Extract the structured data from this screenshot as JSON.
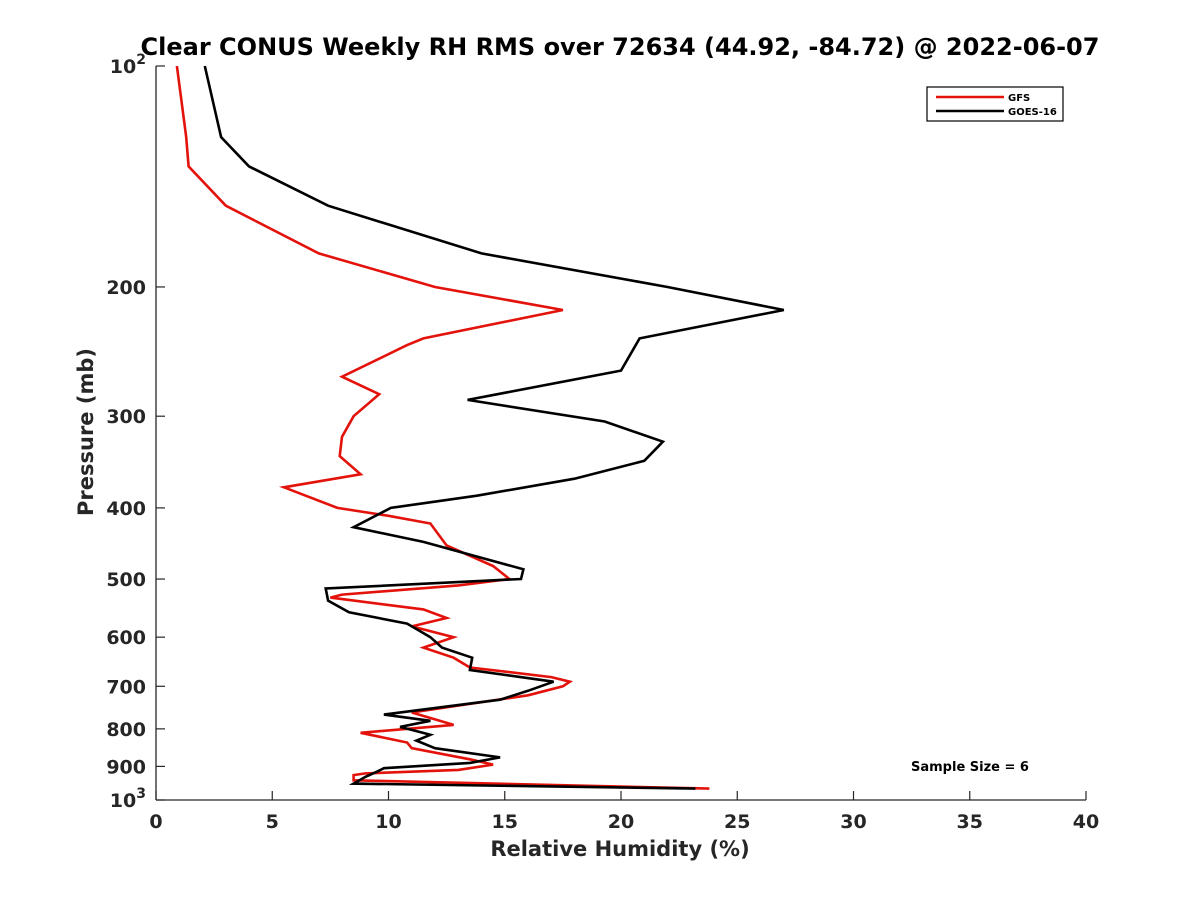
{
  "chart_data": {
    "type": "line",
    "title": "Clear CONUS Weekly RH RMS over 72634 (44.92, -84.72) @ 2022-06-07",
    "xlabel": "Relative Humidity (%)",
    "ylabel": "Pressure (mb)",
    "xlim": [
      0,
      40
    ],
    "ylim": [
      100,
      1000
    ],
    "yscale": "log",
    "y_reversed": true,
    "x_ticks": [
      0,
      5,
      10,
      15,
      20,
      25,
      30,
      35,
      40
    ],
    "x_tick_labels": [
      "0",
      "5",
      "10",
      "15",
      "20",
      "25",
      "30",
      "35",
      "40"
    ],
    "y_ticks": [
      100,
      200,
      300,
      400,
      500,
      600,
      700,
      800,
      900,
      1000
    ],
    "y_tick_labels": [
      {
        "base": "10",
        "exp": "2"
      },
      {
        "text": "200"
      },
      {
        "text": "300"
      },
      {
        "text": "400"
      },
      {
        "text": "500"
      },
      {
        "text": "600"
      },
      {
        "text": "700"
      },
      {
        "text": "800"
      },
      {
        "text": "900"
      },
      {
        "base": "10",
        "exp": "3"
      }
    ],
    "legend_position": "top-right",
    "annotation": "Sample Size = 6",
    "series": [
      {
        "name": "GFS",
        "color": "#e3120b",
        "points": [
          [
            0.9,
            100
          ],
          [
            1.3,
            125
          ],
          [
            1.4,
            137
          ],
          [
            3.0,
            155
          ],
          [
            7.0,
            180
          ],
          [
            12.0,
            200
          ],
          [
            17.5,
            215
          ],
          [
            11.5,
            235
          ],
          [
            10.8,
            240
          ],
          [
            8.0,
            265
          ],
          [
            9.6,
            280
          ],
          [
            8.5,
            300
          ],
          [
            8.0,
            320
          ],
          [
            7.9,
            340
          ],
          [
            8.8,
            360
          ],
          [
            5.5,
            375
          ],
          [
            7.8,
            400
          ],
          [
            10.0,
            410
          ],
          [
            11.8,
            420
          ],
          [
            12.5,
            450
          ],
          [
            14.5,
            480
          ],
          [
            15.2,
            500
          ],
          [
            13.0,
            510
          ],
          [
            8.0,
            525
          ],
          [
            7.5,
            530
          ],
          [
            11.5,
            550
          ],
          [
            12.5,
            565
          ],
          [
            11.0,
            580
          ],
          [
            12.8,
            600
          ],
          [
            11.5,
            620
          ],
          [
            12.8,
            640
          ],
          [
            13.5,
            660
          ],
          [
            17.0,
            680
          ],
          [
            17.8,
            690
          ],
          [
            17.5,
            700
          ],
          [
            16.0,
            720
          ],
          [
            11.0,
            760
          ],
          [
            12.8,
            790
          ],
          [
            8.8,
            810
          ],
          [
            10.8,
            835
          ],
          [
            11.0,
            850
          ],
          [
            13.5,
            880
          ],
          [
            14.5,
            895
          ],
          [
            13.0,
            910
          ],
          [
            9.0,
            920
          ],
          [
            8.5,
            925
          ],
          [
            8.5,
            940
          ],
          [
            23.8,
            965
          ]
        ]
      },
      {
        "name": "GOES-16",
        "color": "#000000",
        "points": [
          [
            2.1,
            100
          ],
          [
            2.8,
            125
          ],
          [
            4.0,
            137
          ],
          [
            7.4,
            155
          ],
          [
            14.0,
            180
          ],
          [
            22.0,
            200
          ],
          [
            27.0,
            215
          ],
          [
            20.8,
            235
          ],
          [
            20.0,
            260
          ],
          [
            13.4,
            285
          ],
          [
            19.3,
            305
          ],
          [
            21.8,
            325
          ],
          [
            21.0,
            345
          ],
          [
            18.0,
            365
          ],
          [
            13.8,
            385
          ],
          [
            10.1,
            400
          ],
          [
            8.5,
            425
          ],
          [
            11.5,
            445
          ],
          [
            15.8,
            485
          ],
          [
            15.7,
            500
          ],
          [
            7.3,
            515
          ],
          [
            7.4,
            535
          ],
          [
            8.3,
            555
          ],
          [
            10.8,
            575
          ],
          [
            11.8,
            600
          ],
          [
            12.3,
            620
          ],
          [
            13.6,
            640
          ],
          [
            13.5,
            665
          ],
          [
            17.1,
            690
          ],
          [
            16.0,
            710
          ],
          [
            14.8,
            730
          ],
          [
            9.8,
            765
          ],
          [
            11.8,
            780
          ],
          [
            10.5,
            795
          ],
          [
            11.8,
            815
          ],
          [
            11.2,
            830
          ],
          [
            12.0,
            850
          ],
          [
            14.8,
            875
          ],
          [
            13.5,
            890
          ],
          [
            9.8,
            905
          ],
          [
            9.5,
            915
          ],
          [
            9.0,
            930
          ],
          [
            8.5,
            950
          ],
          [
            23.2,
            965
          ]
        ]
      }
    ]
  }
}
